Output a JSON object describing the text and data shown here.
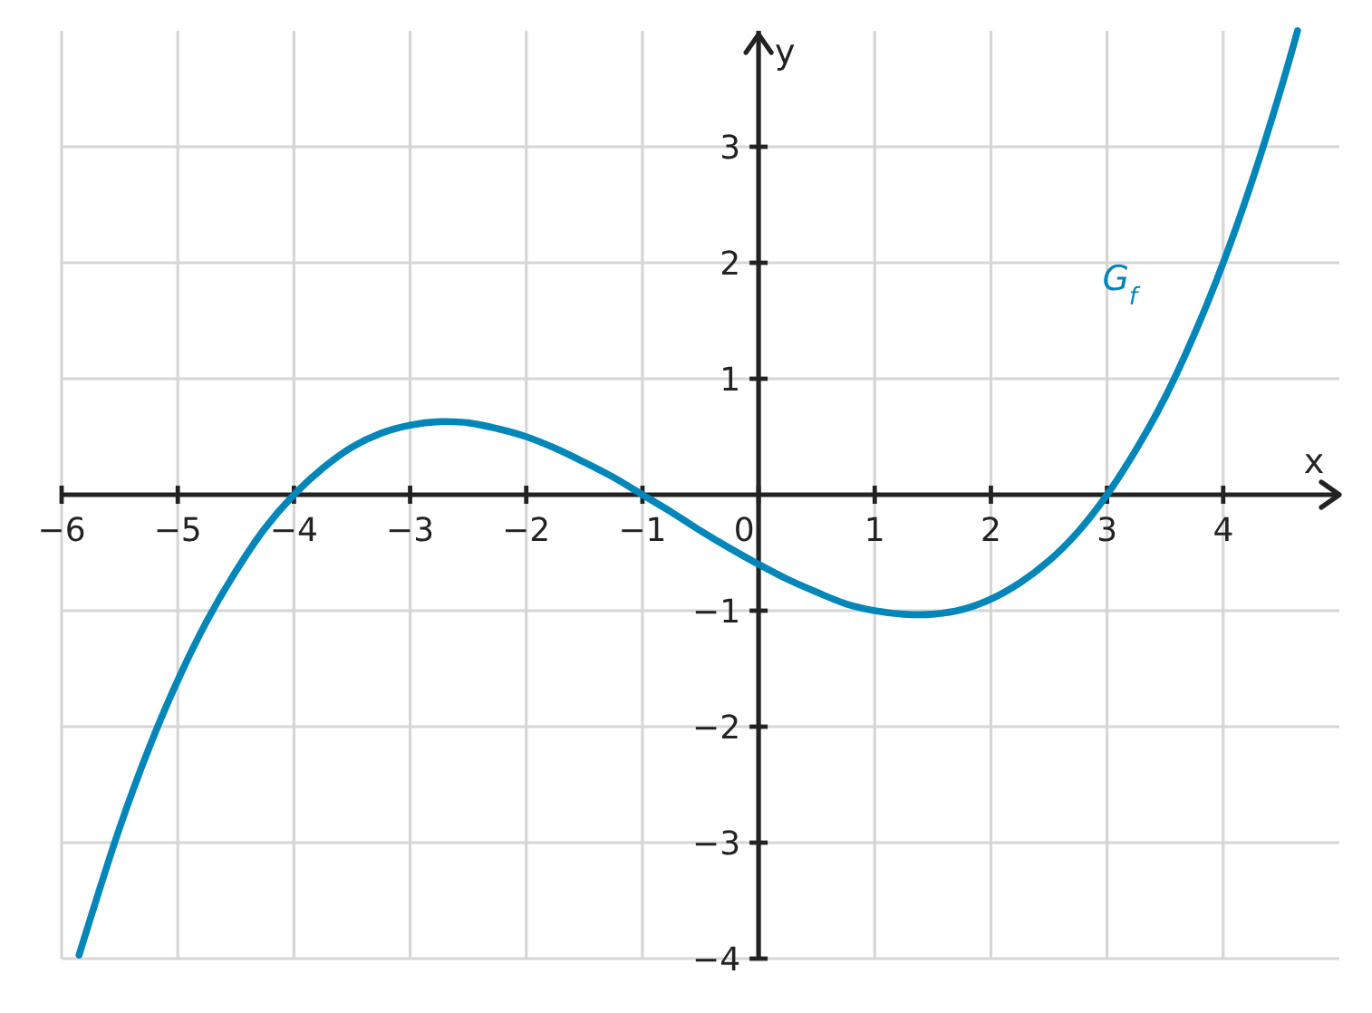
{
  "chart_data": {
    "type": "line",
    "xlabel": "x",
    "ylabel": "y",
    "x": [
      -5.85,
      -5.5,
      -5.25,
      -5,
      -4.75,
      -4.5,
      -4.25,
      -4,
      -3.75,
      -3.5,
      -3.25,
      -3,
      -2.75,
      -2.5,
      -2.25,
      -2,
      -1.75,
      -1.5,
      -1.25,
      -1,
      -0.75,
      -0.5,
      -0.25,
      0,
      0.25,
      0.5,
      0.75,
      1,
      1.25,
      1.5,
      1.75,
      2,
      2.25,
      2.5,
      2.75,
      3,
      3.25,
      3.5,
      3.75,
      4,
      4.25,
      4.5,
      4.64
    ],
    "series": [
      {
        "name": "G$_{f}$",
        "color": "#0086b8",
        "values": [
          -3.97,
          -2.87,
          -2.19,
          -1.6,
          -1.09,
          -0.66,
          -0.29,
          0,
          0.23,
          0.41,
          0.53,
          0.6,
          0.63,
          0.62,
          0.57,
          0.5,
          0.4,
          0.28,
          0.15,
          0,
          -0.15,
          -0.31,
          -0.46,
          -0.6,
          -0.73,
          -0.84,
          -0.94,
          -1,
          -1.03,
          -1.03,
          -0.99,
          -0.9,
          -0.76,
          -0.57,
          -0.32,
          0,
          0.39,
          0.84,
          1.38,
          2,
          2.71,
          3.51,
          4
        ]
      }
    ],
    "xlim": [
      -6,
      5
    ],
    "ylim": [
      -4,
      4
    ],
    "xticks": [
      {
        "value": -6,
        "label": "−6"
      },
      {
        "value": -5,
        "label": "−5"
      },
      {
        "value": -4,
        "label": "−4"
      },
      {
        "value": -3,
        "label": "−3"
      },
      {
        "value": -2,
        "label": "−2"
      },
      {
        "value": -1,
        "label": "−1"
      },
      0,
      1,
      2,
      3,
      4
    ],
    "yticks": [
      {
        "value": -4,
        "label": "−4"
      },
      {
        "value": -3,
        "label": "−3"
      },
      {
        "value": -2,
        "label": "−2"
      },
      {
        "value": -1,
        "label": "−1"
      },
      1,
      2,
      3
    ],
    "grid": true
  }
}
